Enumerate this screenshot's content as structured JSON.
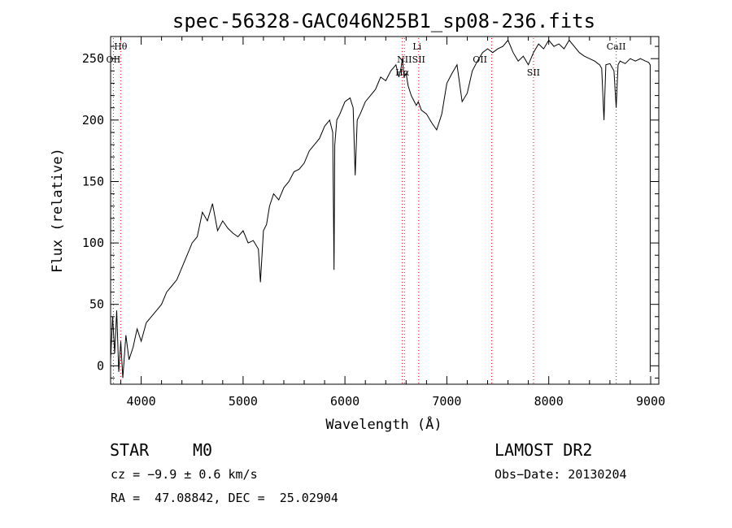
{
  "chart_data": {
    "type": "line",
    "title": "spec-56328-GAC046N25B1_sp08-236.fits",
    "xlabel": "Wavelength (Å)",
    "ylabel": "Flux (relative)",
    "xlim": [
      3700,
      9080
    ],
    "ylim": [
      -15,
      268
    ],
    "xticks": [
      4000,
      5000,
      6000,
      7000,
      8000,
      9000
    ],
    "yticks": [
      0,
      50,
      100,
      150,
      200,
      250
    ],
    "grid": false,
    "series": [
      {
        "x": [
          3700,
          3720,
          3740,
          3760,
          3780,
          3800,
          3820,
          3850,
          3880,
          3920,
          3960,
          4000,
          4050,
          4100,
          4150,
          4200,
          4250,
          4300,
          4350,
          4400,
          4450,
          4500,
          4550,
          4600,
          4650,
          4700,
          4750,
          4800,
          4850,
          4900,
          4950,
          5000,
          5050,
          5100,
          5150,
          5170,
          5200,
          5230,
          5260,
          5300,
          5350,
          5400,
          5450,
          5500,
          5550,
          5600,
          5650,
          5700,
          5750,
          5800,
          5850,
          5880,
          5893,
          5900,
          5920,
          5950,
          6000,
          6050,
          6080,
          6100,
          6120,
          6150,
          6200,
          6250,
          6300,
          6350,
          6400,
          6450,
          6500,
          6530,
          6550,
          6563,
          6580,
          6600,
          6620,
          6650,
          6700,
          6720,
          6750,
          6800,
          6850,
          6900,
          6950,
          7000,
          7050,
          7100,
          7150,
          7200,
          7250,
          7300,
          7350,
          7400,
          7450,
          7500,
          7550,
          7600,
          7650,
          7700,
          7750,
          7800,
          7850,
          7900,
          7950,
          8000,
          8050,
          8100,
          8150,
          8200,
          8250,
          8300,
          8350,
          8400,
          8450,
          8500,
          8520,
          8542,
          8560,
          8600,
          8640,
          8662,
          8680,
          8700,
          8750,
          8800,
          8850,
          8900,
          8950,
          8980,
          8995
        ],
        "y": [
          5,
          40,
          10,
          45,
          -5,
          20,
          -10,
          25,
          5,
          15,
          30,
          20,
          35,
          40,
          45,
          50,
          60,
          65,
          70,
          80,
          90,
          100,
          105,
          125,
          118,
          132,
          110,
          118,
          112,
          108,
          105,
          110,
          100,
          102,
          95,
          68,
          110,
          115,
          130,
          140,
          135,
          145,
          150,
          158,
          160,
          165,
          175,
          180,
          185,
          195,
          200,
          190,
          78,
          180,
          200,
          205,
          215,
          218,
          210,
          155,
          200,
          205,
          215,
          220,
          225,
          235,
          232,
          240,
          245,
          235,
          242,
          250,
          235,
          238,
          228,
          220,
          212,
          215,
          208,
          205,
          198,
          192,
          205,
          230,
          238,
          245,
          215,
          222,
          240,
          248,
          255,
          258,
          255,
          258,
          260,
          265,
          255,
          248,
          252,
          245,
          255,
          262,
          258,
          265,
          260,
          262,
          258,
          265,
          260,
          255,
          252,
          250,
          248,
          245,
          242,
          200,
          245,
          246,
          240,
          210,
          245,
          248,
          246,
          250,
          248,
          250,
          248,
          247,
          245
        ]
      }
    ],
    "lines": [
      {
        "label": "Hθ",
        "x": 3798,
        "row": 1
      },
      {
        "label": "OII",
        "x": 3727,
        "row": 2
      },
      {
        "label": "Li",
        "x": 6708,
        "row": 1
      },
      {
        "label": "NII",
        "x": 6584,
        "row": 2
      },
      {
        "label": "SII",
        "x": 6724,
        "row": 2
      },
      {
        "label": "Hα",
        "x": 6563,
        "row": 3
      },
      {
        "label": "OII",
        "x": 7325,
        "row": 2
      },
      {
        "label": "SII",
        "x": 7850,
        "row": 3
      },
      {
        "label": "CaII",
        "x": 8662,
        "row": 1
      }
    ],
    "marker_positions": [
      3798,
      3727,
      6563,
      6584,
      6724,
      7440,
      7850,
      8662
    ],
    "marker_color": "#ff0000"
  },
  "info": {
    "object_class": "STAR",
    "subclass": "M0",
    "survey": "LAMOST DR2",
    "velocity": "cz = −9.9 ± 0.6 km/s",
    "obs_date": "Obs−Date: 20130204",
    "coords": "RA =  47.08842, DEC =  25.02904"
  }
}
